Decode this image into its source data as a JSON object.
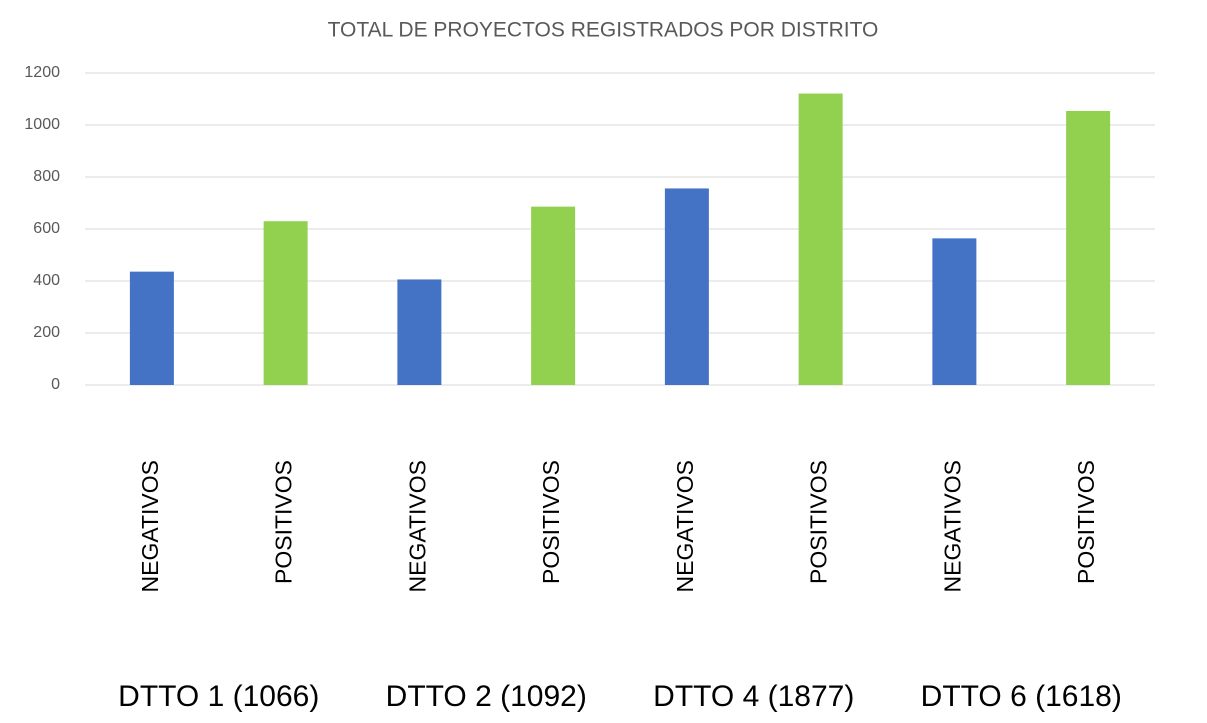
{
  "chart_data": {
    "type": "bar",
    "title": "TOTAL DE PROYECTOS REGISTRADOS POR DISTRITO",
    "categories": [
      "NEGATIVOS",
      "POSITIVOS",
      "NEGATIVOS",
      "POSITIVOS",
      "NEGATIVOS",
      "POSITIVOS",
      "NEGATIVOS",
      "POSITIVOS"
    ],
    "values": [
      436,
      630,
      406,
      686,
      756,
      1121,
      564,
      1054
    ],
    "colors": [
      "#4472c4",
      "#92d050",
      "#4472c4",
      "#92d050",
      "#4472c4",
      "#92d050",
      "#4472c4",
      "#92d050"
    ],
    "groups": [
      "DTTO 1 (1066)",
      "DTTO 2 (1092)",
      "DTTO 4 (1877)",
      "DTTO 6 (1618)"
    ],
    "ylim": [
      0,
      1200
    ],
    "yticks": [
      0,
      200,
      400,
      600,
      800,
      1000,
      1200
    ],
    "grid": true
  }
}
